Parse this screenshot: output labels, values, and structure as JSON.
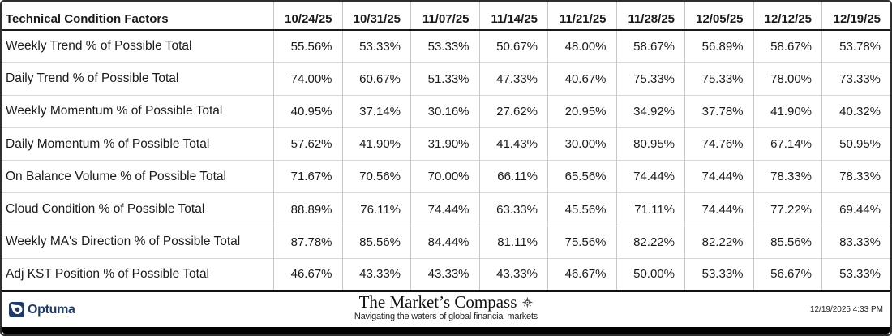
{
  "chart_data": {
    "type": "table",
    "title": "Technical Condition Factors",
    "columns": [
      "10/24/25",
      "10/31/25",
      "11/07/25",
      "11/14/25",
      "11/21/25",
      "11/28/25",
      "12/05/25",
      "12/12/25",
      "12/19/25"
    ],
    "rows": [
      {
        "name": "Weekly Trend % of Possible Total",
        "values": [
          "55.56%",
          "53.33%",
          "53.33%",
          "50.67%",
          "48.00%",
          "58.67%",
          "56.89%",
          "58.67%",
          "53.78%"
        ]
      },
      {
        "name": "Daily Trend % of Possible Total",
        "values": [
          "74.00%",
          "60.67%",
          "51.33%",
          "47.33%",
          "40.67%",
          "75.33%",
          "75.33%",
          "78.00%",
          "73.33%"
        ]
      },
      {
        "name": "Weekly Momentum % of Possible Total",
        "values": [
          "40.95%",
          "37.14%",
          "30.16%",
          "27.62%",
          "20.95%",
          "34.92%",
          "37.78%",
          "41.90%",
          "40.32%"
        ]
      },
      {
        "name": "Daily Momentum % of Possible Total",
        "values": [
          "57.62%",
          "41.90%",
          "31.90%",
          "41.43%",
          "30.00%",
          "80.95%",
          "74.76%",
          "67.14%",
          "50.95%"
        ]
      },
      {
        "name": "On Balance Volume % of Possible Total",
        "values": [
          "71.67%",
          "70.56%",
          "70.00%",
          "66.11%",
          "65.56%",
          "74.44%",
          "74.44%",
          "78.33%",
          "78.33%"
        ]
      },
      {
        "name": "Cloud Condition % of Possible Total",
        "values": [
          "88.89%",
          "76.11%",
          "74.44%",
          "63.33%",
          "45.56%",
          "71.11%",
          "74.44%",
          "77.22%",
          "69.44%"
        ]
      },
      {
        "name": "Weekly MA's Direction % of Possible Total",
        "values": [
          "87.78%",
          "85.56%",
          "84.44%",
          "81.11%",
          "75.56%",
          "82.22%",
          "82.22%",
          "85.56%",
          "83.33%"
        ]
      },
      {
        "name": "Adj KST Position % of Possible Total",
        "values": [
          "46.67%",
          "43.33%",
          "43.33%",
          "43.33%",
          "46.67%",
          "50.00%",
          "53.33%",
          "56.67%",
          "53.33%"
        ]
      }
    ]
  },
  "footer": {
    "brand_label": "Optuma",
    "brand_icon": "optuma-logo-icon",
    "site_title": "The Market’s Compass",
    "compass_icon": "compass-rose-icon",
    "site_tagline": "Navigating the waters of global financial markets",
    "timestamp": "12/19/2025 4:33 PM"
  },
  "colors": {
    "optuma_navy": "#1d3a6a",
    "table_text": "#1a1a1a",
    "grid_line": "#c7c7c7",
    "row_line": "#d8d8d8",
    "frame_border": "#2e2e2e",
    "bottom_bar": "#000000"
  }
}
